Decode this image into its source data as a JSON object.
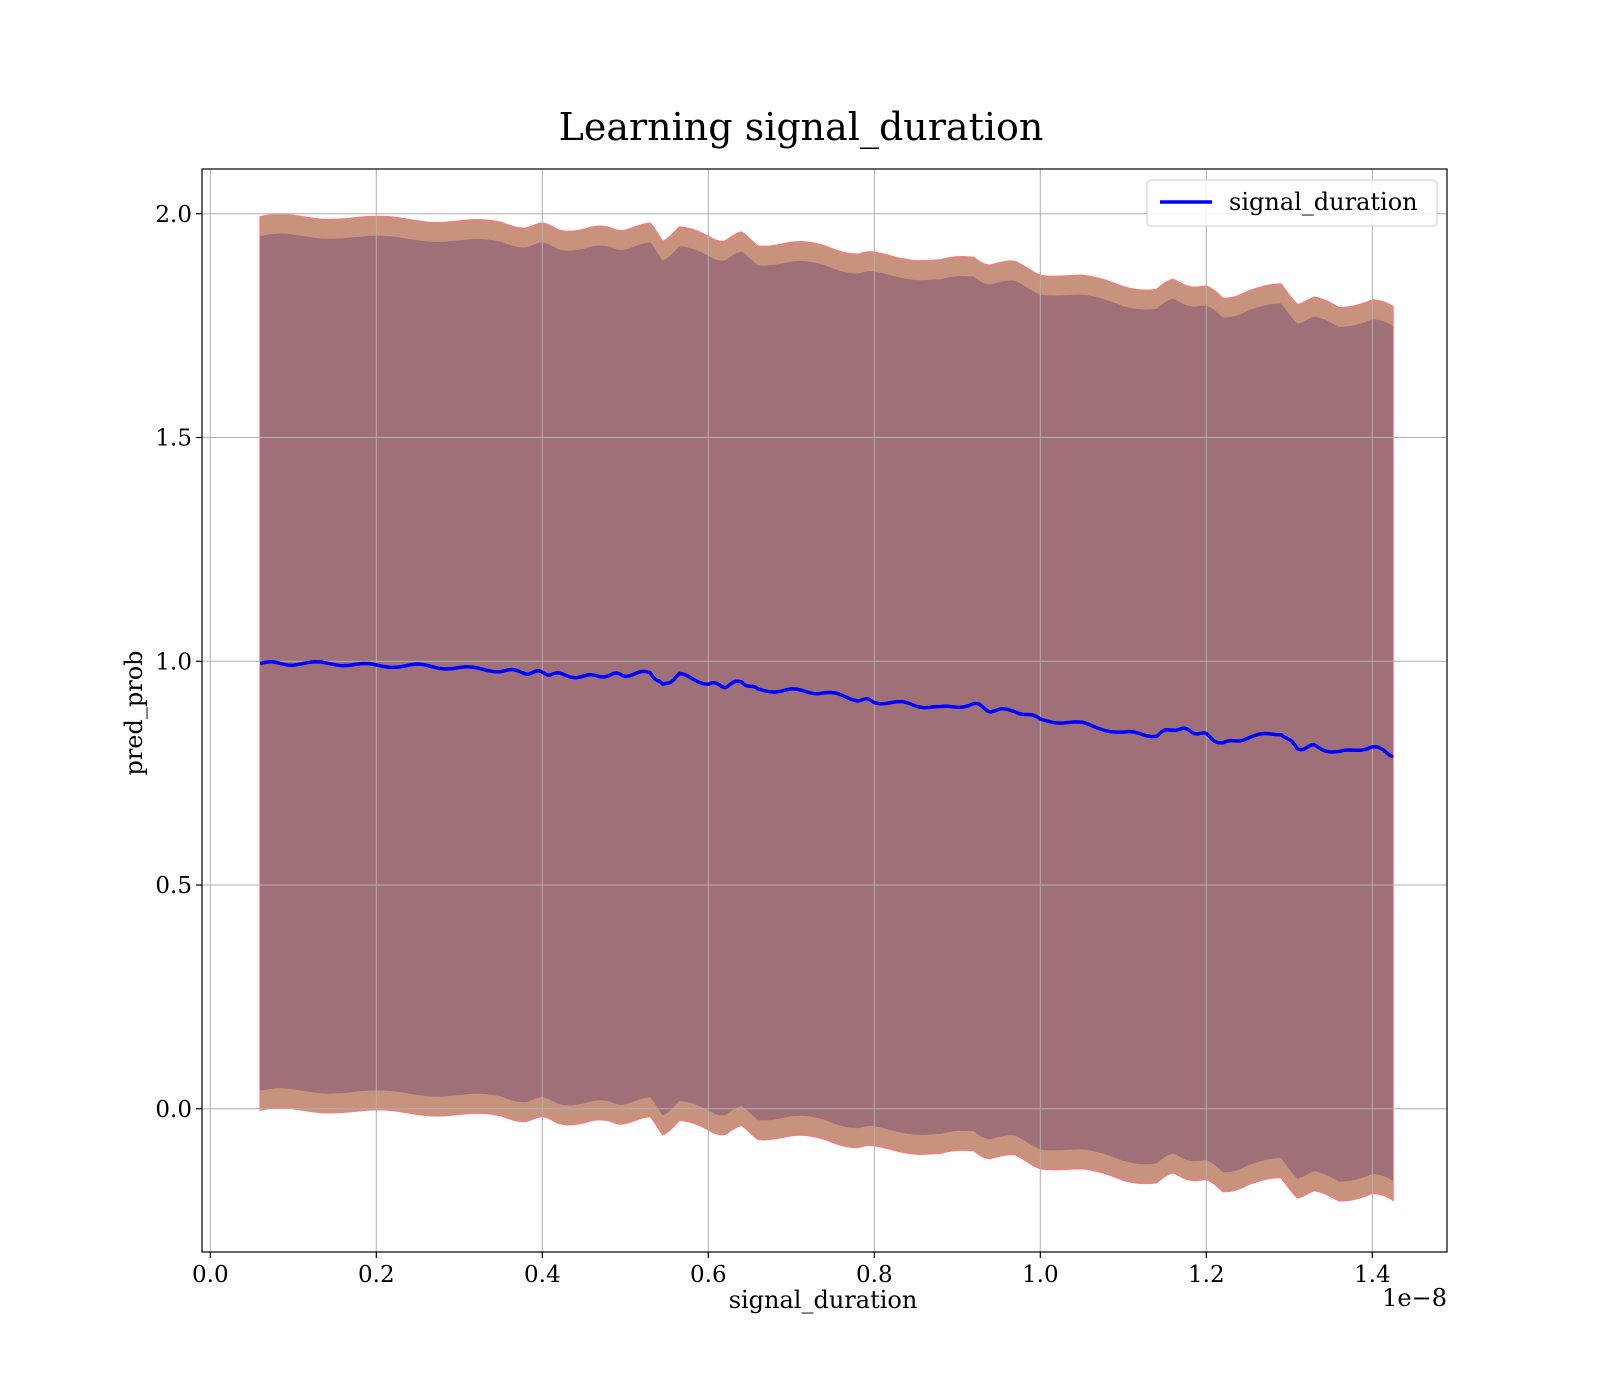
{
  "chart_data": {
    "type": "line",
    "title": "Learning signal_duration",
    "xlabel": "signal_duration",
    "ylabel": "pred_prob",
    "x_offset_text": "1e−8",
    "xlim": [
      -0.01,
      1.49
    ],
    "ylim": [
      -0.32,
      2.1
    ],
    "x_ticks": [
      0.0,
      0.2,
      0.4,
      0.6,
      0.8,
      1.0,
      1.2,
      1.4
    ],
    "x_tick_labels": [
      "0.0",
      "0.2",
      "0.4",
      "0.6",
      "0.8",
      "1.0",
      "1.2",
      "1.4"
    ],
    "y_ticks": [
      0.0,
      0.5,
      1.0,
      1.5,
      2.0
    ],
    "y_tick_labels": [
      "0.0",
      "0.5",
      "1.0",
      "1.5",
      "2.0"
    ],
    "grid": true,
    "legend": {
      "position": "top-right",
      "entries": [
        "signal_duration"
      ]
    },
    "colors": {
      "line": "#0000ff",
      "outer_band": "#c8937c",
      "outer_band_edge": "#f08080",
      "inner_band": "#a07078",
      "grid": "#b0b0b0",
      "axes": "#000000"
    },
    "series": [
      {
        "name": "signal_duration",
        "x": [
          0.06,
          0.1,
          0.15,
          0.2,
          0.25,
          0.3,
          0.35,
          0.38,
          0.4,
          0.42,
          0.45,
          0.48,
          0.5,
          0.53,
          0.545,
          0.565,
          0.6,
          0.62,
          0.64,
          0.66,
          0.7,
          0.74,
          0.78,
          0.8,
          0.84,
          0.88,
          0.92,
          0.94,
          0.97,
          1.0,
          1.05,
          1.1,
          1.14,
          1.16,
          1.18,
          1.2,
          1.22,
          1.25,
          1.29,
          1.31,
          1.33,
          1.36,
          1.4,
          1.425
        ],
        "values": [
          0.995,
          0.995,
          0.995,
          0.99,
          0.99,
          0.985,
          0.98,
          0.975,
          0.975,
          0.97,
          0.965,
          0.97,
          0.97,
          0.975,
          0.945,
          0.97,
          0.95,
          0.945,
          0.955,
          0.935,
          0.935,
          0.93,
          0.915,
          0.91,
          0.905,
          0.895,
          0.905,
          0.89,
          0.89,
          0.87,
          0.86,
          0.84,
          0.835,
          0.85,
          0.845,
          0.835,
          0.815,
          0.83,
          0.84,
          0.805,
          0.81,
          0.795,
          0.81,
          0.79
        ]
      }
    ]
  }
}
